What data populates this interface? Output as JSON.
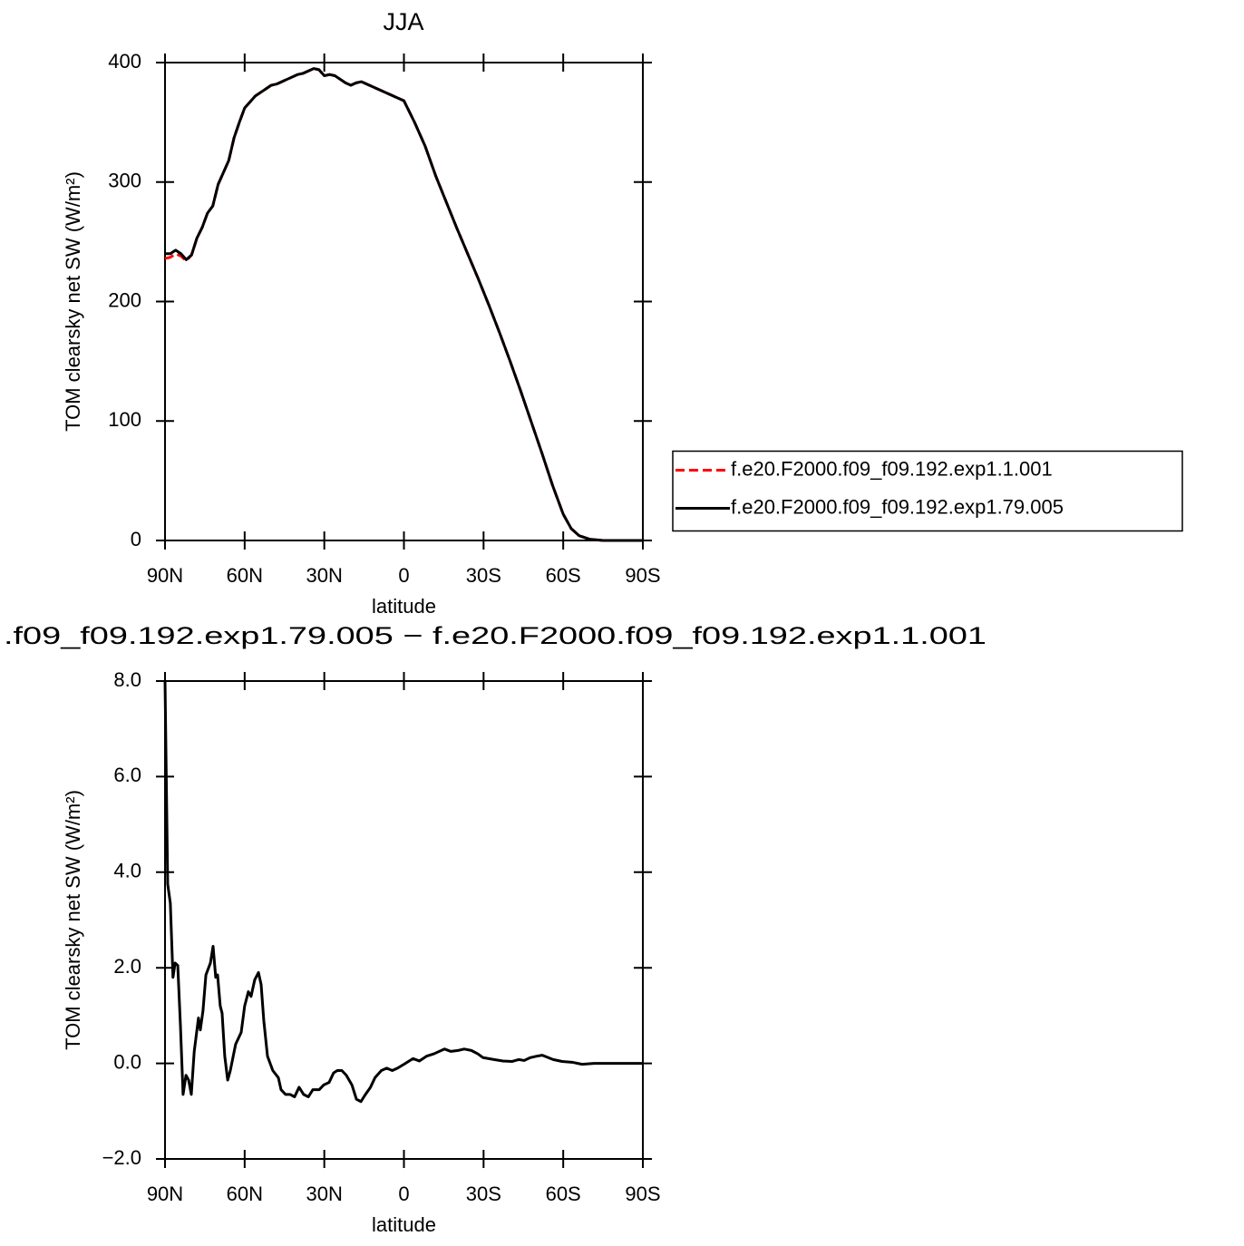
{
  "chart_data": [
    {
      "type": "line",
      "title": "JJA",
      "xlabel": "latitude",
      "ylabel": "TOM clearsky net SW (W/m²)",
      "xlim": [
        90,
        -90
      ],
      "ylim": [
        0,
        400
      ],
      "xticks": [
        {
          "value": 90,
          "label": "90N"
        },
        {
          "value": 60,
          "label": "60N"
        },
        {
          "value": 30,
          "label": "30N"
        },
        0,
        {
          "value": -30,
          "label": "30S"
        },
        {
          "value": -60,
          "label": "60S"
        },
        {
          "value": -90,
          "label": "90S"
        }
      ],
      "yticks": [
        0,
        100,
        200,
        300,
        400
      ],
      "legend": "right",
      "x": [
        90,
        88,
        86,
        84,
        82,
        80,
        78,
        76,
        74,
        72,
        70,
        68,
        66,
        64,
        62,
        60,
        58,
        56,
        54,
        52,
        50,
        48,
        46,
        44,
        42,
        40,
        38,
        36,
        34,
        32,
        30,
        28,
        26,
        24,
        22,
        20,
        18,
        16,
        14,
        12,
        10,
        8,
        6,
        4,
        2,
        0,
        -4,
        -8,
        -12,
        -16,
        -20,
        -24,
        -28,
        -32,
        -36,
        -40,
        -44,
        -48,
        -52,
        -56,
        -60,
        -63,
        -66,
        -70,
        -75,
        -80,
        -90
      ],
      "series": [
        {
          "name": "f.e20.F2000.f09_f09.192.exp1.1.001",
          "color": "#ff0000",
          "dash": true,
          "values": [
            236,
            237,
            240,
            238,
            234,
            239,
            253,
            262,
            274,
            280,
            298,
            308,
            318,
            337,
            350,
            362,
            367,
            372,
            375,
            378,
            381,
            382,
            384,
            386,
            388,
            390,
            391,
            393,
            395,
            394,
            389,
            390,
            389,
            386,
            383,
            381,
            383,
            384,
            382,
            380,
            378,
            376,
            374,
            372,
            370,
            368,
            350,
            330,
            305,
            283,
            261,
            240,
            219,
            197,
            174,
            150,
            125,
            99,
            73,
            46,
            22,
            10,
            4,
            1,
            0,
            0,
            0
          ]
        },
        {
          "name": "f.e20.F2000.f09_f09.192.exp1.79.005",
          "color": "#000000",
          "dash": false,
          "values": [
            240,
            240,
            243,
            240,
            235,
            239,
            253,
            262,
            274,
            280,
            298,
            308,
            318,
            337,
            350,
            362,
            367,
            372,
            375,
            378,
            381,
            382,
            384,
            386,
            388,
            390,
            391,
            393,
            395,
            394,
            389,
            390,
            389,
            386,
            383,
            381,
            383,
            384,
            382,
            380,
            378,
            376,
            374,
            372,
            370,
            368,
            350,
            330,
            305,
            283,
            261,
            240,
            219,
            197,
            174,
            150,
            125,
            99,
            73,
            46,
            22,
            10,
            4,
            1,
            0,
            0,
            0
          ]
        }
      ]
    },
    {
      "type": "line",
      "title": ".f09_f09.192.exp1.79.005 − f.e20.F2000.f09_f09.192.exp1.1.001",
      "xlabel": "latitude",
      "ylabel": "TOM clearsky net SW (W/m²)",
      "xlim": [
        90,
        -90
      ],
      "ylim": [
        -2,
        8
      ],
      "xticks": [
        {
          "value": 90,
          "label": "90N"
        },
        {
          "value": 60,
          "label": "60N"
        },
        {
          "value": 30,
          "label": "30N"
        },
        0,
        {
          "value": -30,
          "label": "30S"
        },
        {
          "value": -60,
          "label": "60S"
        },
        {
          "value": -90,
          "label": "90S"
        }
      ],
      "yticks": [
        {
          "value": -2,
          "label": "−2.0"
        },
        {
          "value": 0,
          "label": "0.0"
        },
        {
          "value": 2,
          "label": "2.0"
        },
        {
          "value": 4,
          "label": "4.0"
        },
        {
          "value": 6,
          "label": "6.0"
        },
        {
          "value": 8,
          "label": "8.0"
        }
      ],
      "x": [
        90,
        89,
        88,
        87,
        86.2,
        85.2,
        84.2,
        83.2,
        82.1,
        81.1,
        80.1,
        79,
        77.4,
        76.7,
        75.7,
        74.6,
        72.9,
        71.9,
        70.9,
        70.2,
        69.2,
        68.5,
        67.5,
        66.4,
        65.4,
        63.4,
        61.3,
        60,
        58.6,
        57.6,
        56.2,
        54.8,
        53.8,
        52.8,
        51.4,
        50.4,
        49.4,
        47.3,
        46.3,
        44.6,
        42.9,
        41.2,
        39.5,
        37.8,
        36,
        34.3,
        31.9,
        30.2,
        28.2,
        26.5,
        25.1,
        23.4,
        21.7,
        19.6,
        17.9,
        16.2,
        14.5,
        12.6,
        10.9,
        8.5,
        6.5,
        4.4,
        2.4,
        0,
        -3.4,
        -5.8,
        -8.5,
        -11.3,
        -15.3,
        -17.7,
        -20.4,
        -22.7,
        -25.4,
        -27.8,
        -29.8,
        -33.9,
        -37.3,
        -40.8,
        -43.2,
        -45.3,
        -47.6,
        -50,
        -52.1,
        -56.2,
        -59.6,
        -63.7,
        -67.1,
        -71.6,
        -80,
        -90
      ],
      "series": [
        {
          "color": "#000000",
          "dash": false,
          "values": [
            8.0,
            3.75,
            3.35,
            1.8,
            2.1,
            2.05,
            0.8,
            -0.65,
            -0.25,
            -0.35,
            -0.65,
            0.25,
            0.95,
            0.7,
            1.1,
            1.85,
            2.1,
            2.45,
            1.8,
            1.85,
            1.2,
            1.05,
            0.15,
            -0.35,
            -0.15,
            0.4,
            0.65,
            1.2,
            1.5,
            1.4,
            1.75,
            1.9,
            1.65,
            0.9,
            0.15,
            0,
            -0.15,
            -0.3,
            -0.55,
            -0.65,
            -0.65,
            -0.7,
            -0.5,
            -0.65,
            -0.7,
            -0.55,
            -0.55,
            -0.45,
            -0.4,
            -0.2,
            -0.15,
            -0.15,
            -0.25,
            -0.45,
            -0.75,
            -0.8,
            -0.65,
            -0.5,
            -0.3,
            -0.15,
            -0.1,
            -0.15,
            -0.1,
            -0.02,
            0.1,
            0.05,
            0.15,
            0.2,
            0.3,
            0.25,
            0.27,
            0.3,
            0.27,
            0.2,
            0.12,
            0.08,
            0.05,
            0.04,
            0.08,
            0.06,
            0.12,
            0.15,
            0.17,
            0.08,
            0.04,
            0.02,
            -0.02,
            0,
            0,
            0
          ]
        }
      ]
    }
  ]
}
